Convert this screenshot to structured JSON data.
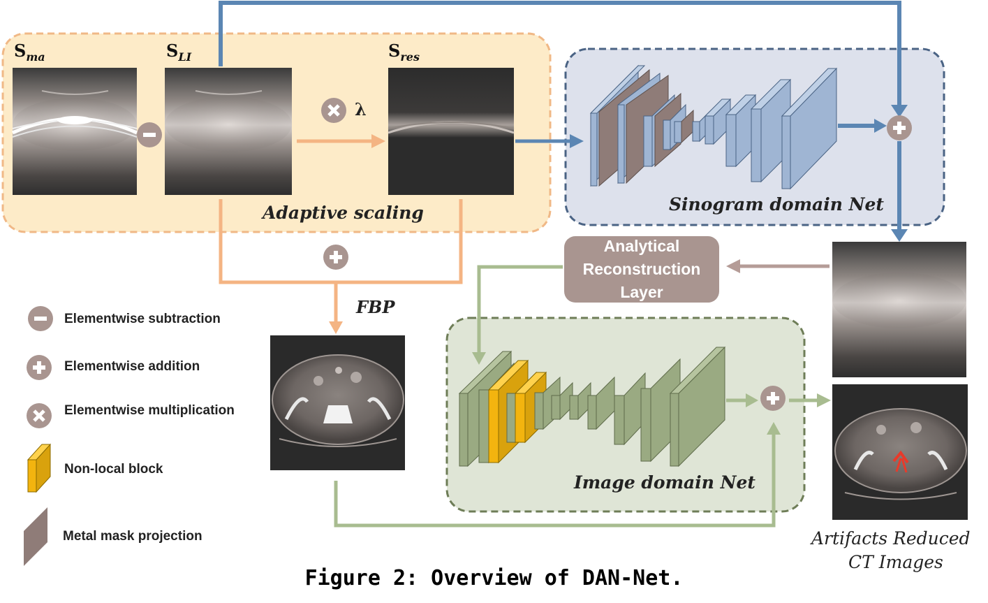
{
  "labels": {
    "s_ma_base": "S",
    "s_ma_sub": "ma",
    "s_li_base": "S",
    "s_li_sub": "LI",
    "s_res_base": "S",
    "s_res_sub": "res",
    "lambda": "λ",
    "adaptive_scaling": "Adaptive scaling",
    "sinogram_net": "Sinogram domain Net",
    "image_net": "Image domain Net",
    "fbp": "FBP",
    "arl": "Analytical\nReconstruction\nLayer",
    "output_line1": "Artifacts Reduced",
    "output_line2": "CT Images"
  },
  "legend": [
    {
      "icon": "minus-circle-icon",
      "label": "Elementwise subtraction"
    },
    {
      "icon": "plus-circle-icon",
      "label": "Elementwise addition"
    },
    {
      "icon": "times-circle-icon",
      "label": "Elementwise multiplication"
    },
    {
      "icon": "nonlocal-block-icon",
      "label": "Non-local block"
    },
    {
      "icon": "metal-mask-projection-icon",
      "label": "Metal mask projection"
    }
  ],
  "caption": "Figure 2: Overview of DAN-Net.",
  "colors": {
    "adaptive_bg": "#fdebc8",
    "adaptive_border": "#f0b886",
    "orange_arrow": "#f4b483",
    "sino_bg": "#dde1ec",
    "sino_border": "#4a6384",
    "blue_arrow": "#5b86b3",
    "layer_blue": "#9fb5d3",
    "mask_brown": "#8f7c78",
    "img_bg": "#dfe5d6",
    "img_border": "#6e7d57",
    "green_arrow": "#a8bc90",
    "layer_green": "#9aaa82",
    "nonlocal_yellow": "#f3b40f",
    "arl_bg": "#a99590",
    "op_circle": "#a99590"
  }
}
